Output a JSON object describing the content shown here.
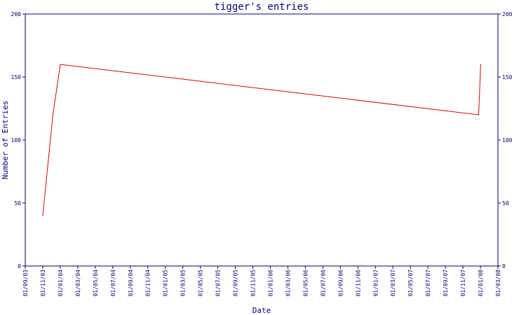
{
  "chart_data": {
    "type": "line",
    "title": "tigger's entries",
    "xlabel": "Date",
    "ylabel": "Number of Entries",
    "ylim": [
      0,
      200
    ],
    "yticks": [
      0,
      50,
      100,
      150,
      200
    ],
    "xlim": [
      "2003-09-01",
      "2008-03-01"
    ],
    "xtick_labels": [
      "01/09/03",
      "01/11/03",
      "01/01/04",
      "01/03/04",
      "01/05/04",
      "01/07/04",
      "01/09/04",
      "01/11/04",
      "01/01/05",
      "01/03/05",
      "01/05/05",
      "01/07/05",
      "01/09/05",
      "01/11/05",
      "01/01/06",
      "01/03/06",
      "01/05/06",
      "01/07/06",
      "01/09/06",
      "01/11/06",
      "01/01/07",
      "01/03/07",
      "01/05/07",
      "01/07/07",
      "01/09/07",
      "01/11/07",
      "01/01/08",
      "01/03/08"
    ],
    "series": [
      {
        "color": "#dd0000",
        "points": [
          {
            "x": "2003-11-01",
            "y": 40
          },
          {
            "x": "2003-12-06",
            "y": 120
          },
          {
            "x": "2004-01-01",
            "y": 160
          },
          {
            "x": "2007-12-25",
            "y": 120
          },
          {
            "x": "2008-01-01",
            "y": 160
          }
        ]
      }
    ],
    "grid": false,
    "right_axis_mirror": true,
    "colors": {
      "axis": "#000080",
      "line": "#dd0000",
      "background": "#ffffff"
    }
  }
}
